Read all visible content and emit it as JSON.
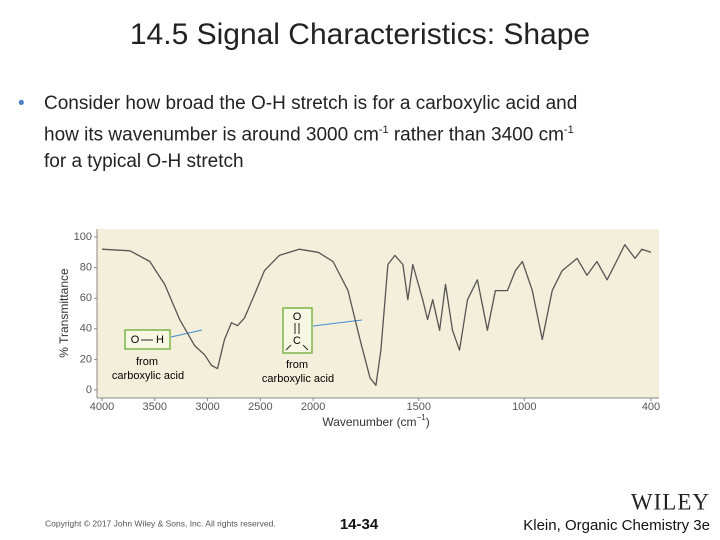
{
  "slide": {
    "title": "14.5 Signal Characteristics: Shape",
    "bullet": [
      [
        "Consider how broad the O-H stretch is for a carboxylic acid and"
      ],
      [
        "how its wavenumber is around 3000 cm",
        "-1",
        " rather than 3400 cm",
        "-1"
      ],
      [
        "for a typical O-H stretch"
      ]
    ],
    "copyright": "Copyright © 2017 John Wiley & Sons, Inc. All rights reserved.",
    "page": "14-34",
    "logo": "WILEY",
    "book": "Klein, Organic Chemistry 3e"
  },
  "chart_data": {
    "type": "line",
    "ylabel": "% Transmittance",
    "xlabel": [
      "Wavenumber (cm",
      "−1",
      ")"
    ],
    "xlim": [
      4000,
      400
    ],
    "x_scale_break": 2000,
    "xticks": [
      4000,
      3500,
      3000,
      2500,
      2000,
      1500,
      1000,
      400
    ],
    "ylim": [
      0,
      100
    ],
    "yticks": [
      0,
      20,
      40,
      60,
      80,
      100
    ],
    "x": [
      4000,
      3735,
      3547,
      3406,
      3264,
      3123,
      3028,
      2962,
      2906,
      2840,
      2774,
      2717,
      2651,
      2557,
      2462,
      2321,
      2132,
      1976,
      1906,
      1835,
      1778,
      1731,
      1703,
      1679,
      1646,
      1613,
      1575,
      1552,
      1528,
      1481,
      1458,
      1434,
      1401,
      1373,
      1340,
      1307,
      1269,
      1222,
      1175,
      1137,
      1080,
      1042,
      1009,
      962,
      915,
      868,
      821,
      750,
      703,
      656,
      608,
      571,
      524,
      476,
      443,
      400
    ],
    "series": [
      {
        "color": "#555555",
        "values": [
          92,
          91,
          84,
          69,
          46,
          29,
          23,
          16,
          14,
          33,
          44,
          42,
          47,
          62,
          78,
          88,
          92,
          90,
          84,
          65,
          33,
          8,
          3,
          26,
          82,
          88,
          82,
          59,
          82,
          59,
          46,
          59,
          39,
          69,
          39,
          26,
          59,
          72,
          39,
          65,
          65,
          78,
          84,
          65,
          33,
          65,
          78,
          86,
          75,
          84,
          72,
          82,
          95,
          86,
          92,
          90
        ]
      }
    ],
    "annotations": [
      {
        "structure": [
          "O",
          "H"
        ],
        "text": [
          "from",
          "carboxylic acid"
        ]
      },
      {
        "structure": [
          "O",
          "C"
        ],
        "text": [
          "from",
          "carboxylic acid"
        ]
      }
    ]
  }
}
